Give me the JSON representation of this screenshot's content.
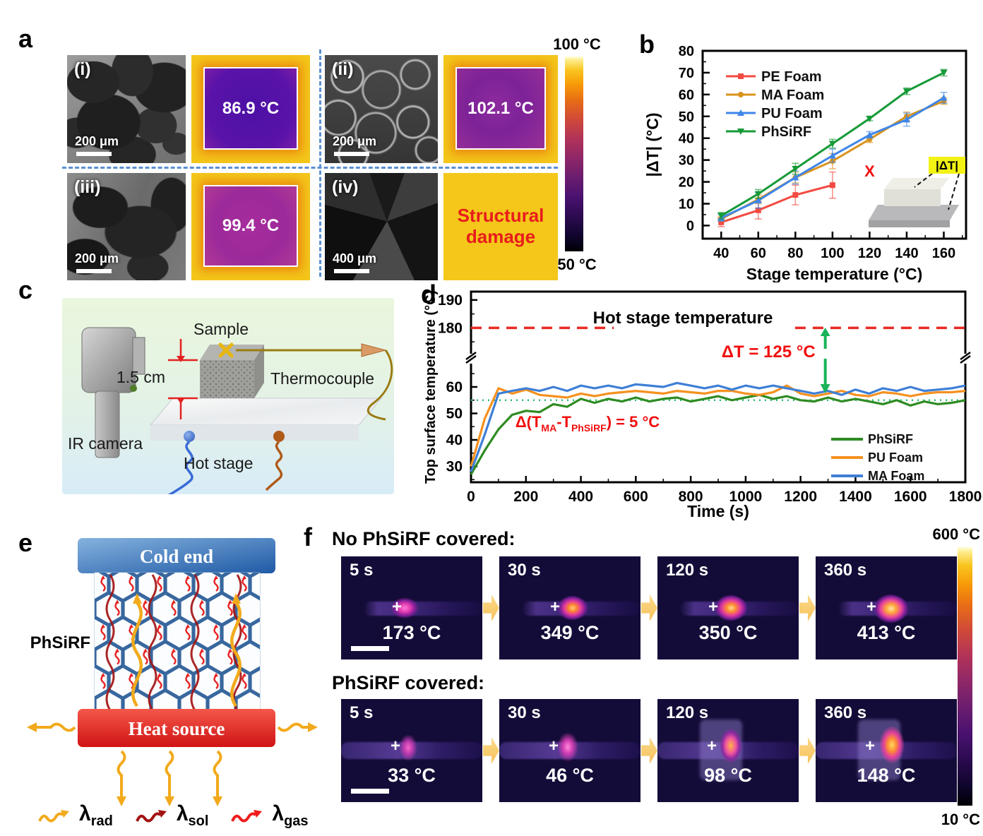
{
  "panels": {
    "a": {
      "letter": "a",
      "items": [
        {
          "tag": "(i)",
          "scale_bar": "200 μm",
          "temp": "86.9 °C"
        },
        {
          "tag": "(ii)",
          "scale_bar": "200 μm",
          "temp": "102.1 °C"
        },
        {
          "tag": "(iii)",
          "scale_bar": "200 μm",
          "temp": "99.4 °C"
        },
        {
          "tag": "(iv)",
          "scale_bar": "400 μm",
          "damage_line1": "Structural",
          "damage_line2": "damage"
        }
      ],
      "colorbar": {
        "top": "100 °C",
        "bottom": "50 °C"
      }
    },
    "b": {
      "letter": "b"
    },
    "c": {
      "letter": "c",
      "labels": {
        "sample": "Sample",
        "dimension": "1.5 cm",
        "thermocouple": "Thermocouple",
        "ir_camera": "IR camera",
        "hot_stage": "Hot stage"
      }
    },
    "d": {
      "letter": "d"
    },
    "e": {
      "letter": "e",
      "cold_end": "Cold end",
      "heat_source": "Heat source",
      "material": "PhSiRF",
      "legend": [
        {
          "color": "#f2aa1c",
          "base": "λ",
          "sub": "rad"
        },
        {
          "color": "#a31313",
          "base": "λ",
          "sub": "sol"
        },
        {
          "color": "#ee1c1c",
          "base": "λ",
          "sub": "gas"
        }
      ]
    },
    "f": {
      "letter": "f",
      "row_titles": [
        "No PhSiRF covered:",
        "PhSiRF covered:"
      ],
      "rows": [
        {
          "frames": [
            {
              "time": "5 s",
              "temp": "173 °C"
            },
            {
              "time": "30 s",
              "temp": "349 °C"
            },
            {
              "time": "120 s",
              "temp": "350 °C"
            },
            {
              "time": "360 s",
              "temp": "413 °C"
            }
          ]
        },
        {
          "frames": [
            {
              "time": "5 s",
              "temp": "33 °C"
            },
            {
              "time": "30 s",
              "temp": "46 °C"
            },
            {
              "time": "120 s",
              "temp": "98 °C"
            },
            {
              "time": "360 s",
              "temp": "148 °C"
            }
          ]
        }
      ],
      "colorbar": {
        "top": "600 °C",
        "bottom": "10 °C"
      }
    }
  },
  "chart_data": [
    {
      "id": "b",
      "type": "line",
      "title": "",
      "xlabel": "Stage temperature (°C)",
      "ylabel": "|ΔT| (°C)",
      "x": [
        40,
        60,
        80,
        100,
        120,
        140,
        160
      ],
      "xlim": [
        30,
        172
      ],
      "ylim": [
        -6,
        80
      ],
      "xticks": [
        40,
        60,
        80,
        100,
        120,
        140,
        160
      ],
      "yticks": [
        0,
        10,
        20,
        30,
        40,
        50,
        60,
        70,
        80
      ],
      "grid": false,
      "legend_position": "top-left",
      "series": [
        {
          "name": "PE Foam",
          "color": "#f24a40",
          "marker": "square",
          "values": [
            1.5,
            7,
            14,
            18.5
          ],
          "err": [
            2,
            4,
            4.5,
            6
          ]
        },
        {
          "name": "MA Foam",
          "color": "#d9931c",
          "marker": "circle",
          "values": [
            3,
            12,
            22,
            29.5,
            39.5,
            50,
            57
          ],
          "err": [
            1,
            2,
            2.5,
            3.5,
            1.5,
            2,
            1.5
          ]
        },
        {
          "name": "PU Foam",
          "color": "#3f86e8",
          "marker": "triangle-up",
          "values": [
            3.5,
            11.5,
            22,
            32,
            41.5,
            48.5,
            58.5
          ],
          "err": [
            1.5,
            3.5,
            3,
            3,
            1.5,
            3,
            2.5
          ]
        },
        {
          "name": "PhSiRF",
          "color": "#169a37",
          "marker": "triangle-down",
          "values": [
            4.5,
            14.5,
            26,
            37.5,
            49,
            61.5,
            70
          ],
          "err": [
            1.5,
            2,
            2.5,
            2,
            1,
            1.5,
            1.5
          ]
        }
      ],
      "annotations": {
        "damage_marker": {
          "x": 120,
          "y": 25,
          "text": "X",
          "color": "#f20f0f"
        },
        "inset_label": "|ΔT|"
      }
    },
    {
      "id": "d",
      "type": "line",
      "xlabel": "Time (s)",
      "ylabel": "Top surface temperature (°C)",
      "xlim": [
        0,
        1800
      ],
      "xticks": [
        0,
        200,
        400,
        600,
        800,
        1000,
        1200,
        1400,
        1600,
        1800
      ],
      "y_axis_break": {
        "lower_range": [
          24,
          68
        ],
        "upper_range": [
          172,
          193
        ],
        "lower_ticks": [
          30,
          40,
          50,
          60
        ],
        "upper_ticks": [
          180,
          190
        ]
      },
      "x_step": 50,
      "hot_stage": {
        "value": 180,
        "label": "Hot stage temperature",
        "color": "#ea2a24",
        "segments": [
          [
            0,
            520
          ],
          [
            1180,
            1800
          ]
        ]
      },
      "guide": {
        "value": 55,
        "color": "#2eb872"
      },
      "annotations": {
        "dt": {
          "x": 1290,
          "text": "ΔT = 125 °C",
          "color": "#f20f0f",
          "arrow_color": "#19b457"
        },
        "delta_parts": [
          {
            "t": "Δ(T"
          },
          {
            "t": "MA",
            "sub": true
          },
          {
            "t": "-T"
          },
          {
            "t": "PhSiRF",
            "sub": true
          },
          {
            "t": ") = 5 °C"
          }
        ],
        "delta_color": "#f20f0f"
      },
      "series": [
        {
          "name": "PhSiRF",
          "color": "#2e8b22",
          "values": [
            27,
            36,
            44,
            49.5,
            51,
            50.5,
            53.5,
            52.5,
            55.5,
            54,
            55.5,
            54.5,
            56,
            54.5,
            55.5,
            56,
            54.5,
            55.5,
            56.5,
            55,
            56,
            57,
            55.5,
            56.5,
            55,
            54.5,
            56,
            54.5,
            55.5,
            54.5,
            53.5,
            55,
            53,
            54.5,
            53.5,
            54,
            55
          ]
        },
        {
          "name": "PU Foam",
          "color": "#f59120",
          "values": [
            30,
            48,
            59.5,
            57.5,
            59,
            57,
            56.5,
            56,
            57.5,
            56.5,
            57.5,
            58,
            58.5,
            58,
            57.5,
            58.5,
            58,
            57.5,
            58.5,
            58.5,
            57.5,
            57,
            58,
            60.5,
            57.5,
            56.5,
            57.5,
            58.5,
            57,
            56.5,
            58,
            57.5,
            56.5,
            57.5,
            58,
            58,
            58.5
          ]
        },
        {
          "name": "MA Foam",
          "color": "#3e7fd6",
          "values": [
            28,
            42,
            57.5,
            58.5,
            59.5,
            58.5,
            60,
            58.5,
            60.5,
            59.5,
            60.5,
            59.5,
            61,
            60.5,
            60,
            61.5,
            60.5,
            59.5,
            60.5,
            59,
            60.5,
            59.5,
            60.5,
            59.5,
            58.5,
            57.5,
            58.5,
            57,
            59,
            57.5,
            59.5,
            58.5,
            60,
            58.5,
            59,
            59.5,
            60.5
          ]
        }
      ]
    }
  ]
}
